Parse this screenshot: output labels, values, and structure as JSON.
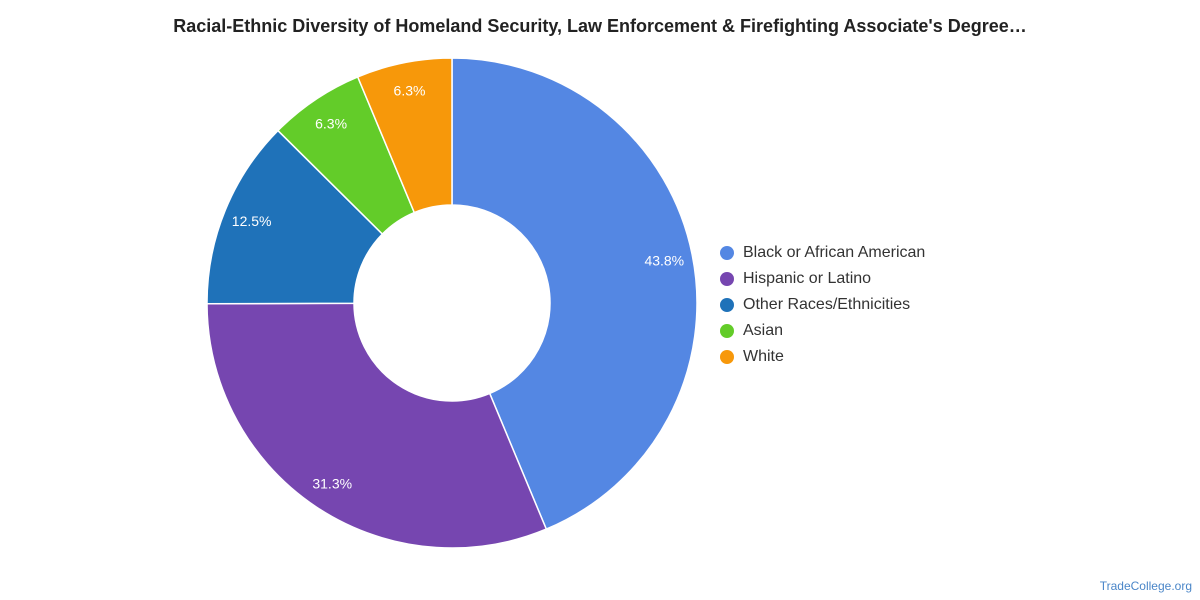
{
  "chart_data": {
    "type": "pie",
    "title": "Racial-Ethnic Diversity of Homeland Security, Law Enforcement & Firefighting Associate's Degree…",
    "donut": true,
    "legend_position": "right",
    "slices": [
      {
        "label": "Black or African American",
        "value": 43.8,
        "value_label": "43.8%",
        "color": "#5487e3"
      },
      {
        "label": "Hispanic or Latino",
        "value": 31.3,
        "value_label": "31.3%",
        "color": "#7646b0"
      },
      {
        "label": "Other Races/Ethnicities",
        "value": 12.5,
        "value_label": "12.5%",
        "color": "#1f72b9"
      },
      {
        "label": "Asian",
        "value": 6.3,
        "value_label": "6.3%",
        "color": "#63cc29"
      },
      {
        "label": "White",
        "value": 6.3,
        "value_label": "6.3%",
        "color": "#f7980a"
      }
    ]
  },
  "footer": {
    "credit": "TradeCollege.org"
  }
}
